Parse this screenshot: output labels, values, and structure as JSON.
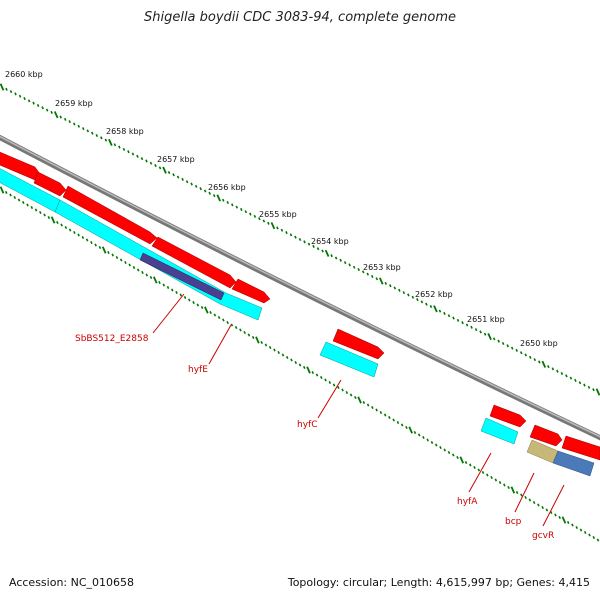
{
  "header": {
    "title": "Shigella boydii CDC 3083-94, complete genome"
  },
  "scale": {
    "kbp_labels": [
      "2660 kbp",
      "2659 kbp",
      "2658 kbp",
      "2657 kbp",
      "2656 kbp",
      "2655 kbp",
      "2654 kbp",
      "2653 kbp",
      "2652 kbp",
      "2651 kbp",
      "2650 kbp"
    ]
  },
  "genes": {
    "labels": [
      "SbBS512_E2858",
      "hyfE",
      "hyfC",
      "hyfA",
      "bcp",
      "gcvR"
    ]
  },
  "colors": {
    "forward_gene": "#ff0000",
    "reverse_gene": "#00ffff",
    "backbone": "#888888",
    "tick_marks": "#007700",
    "label_text": "#cc0000",
    "highlight_gene_purple": "#4b3f8f",
    "highlight_gene_tan": "#c8b878",
    "highlight_gene_blue": "#4a7ab8"
  },
  "footer": {
    "accession": "Accession: NC_010658",
    "topology": "Topology: circular; Length: 4,615,997 bp; Genes: 4,415"
  }
}
